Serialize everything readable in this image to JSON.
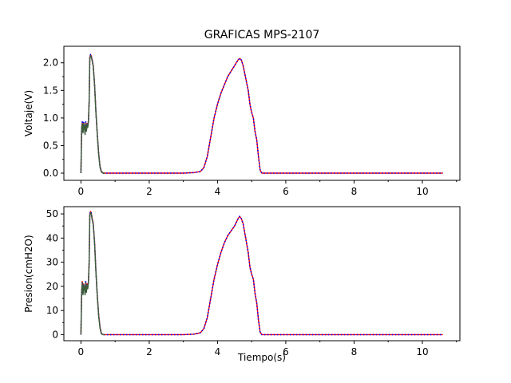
{
  "figure": {
    "title": "GRAFICAS MPS-2107",
    "background": "#ffffff"
  },
  "chart_data": [
    {
      "type": "line",
      "panel": "top",
      "title": "GRAFICAS MPS-2107",
      "xlabel": "",
      "ylabel": "Voltaje(V)",
      "xlim": [
        -0.5,
        11.1
      ],
      "ylim": [
        -0.13,
        2.3
      ],
      "xticks": [
        0,
        2,
        4,
        6,
        8,
        10
      ],
      "xtick_labels": [
        "0",
        "2",
        "4",
        "6",
        "8",
        "10"
      ],
      "yticks": [
        0.0,
        0.5,
        1.0,
        1.5,
        2.0
      ],
      "ytick_labels": [
        "0.0",
        "0.5",
        "1.0",
        "1.5",
        "2.0"
      ],
      "grid": false,
      "legend": "none",
      "series": [
        {
          "color": "#ff0000",
          "style": "solid",
          "x": [
            0.0,
            0.02,
            0.04,
            0.06,
            0.08,
            0.1,
            0.12,
            0.14,
            0.16,
            0.18,
            0.2,
            0.22,
            0.24,
            0.26,
            0.28,
            0.3,
            0.33,
            0.36,
            0.4,
            0.44,
            0.48,
            0.52,
            0.56,
            0.6,
            0.65,
            0.7,
            0.8,
            1.0,
            1.5,
            2.0,
            2.5,
            3.0,
            3.3,
            3.5,
            3.6,
            3.7,
            3.8,
            3.9,
            4.0,
            4.1,
            4.2,
            4.3,
            4.4,
            4.5,
            4.6,
            4.65,
            4.7,
            4.75,
            4.8,
            4.85,
            4.9,
            4.95,
            5.0,
            5.05,
            5.1,
            5.15,
            5.2,
            5.25,
            5.3,
            5.4,
            6.0,
            7.0,
            8.0,
            9.0,
            10.0,
            10.6
          ],
          "y": [
            0.0,
            0.82,
            0.93,
            0.75,
            0.92,
            0.85,
            0.72,
            0.93,
            0.78,
            0.9,
            0.85,
            0.95,
            1.3,
            2.1,
            2.15,
            2.13,
            2.05,
            1.95,
            1.6,
            1.1,
            0.7,
            0.35,
            0.12,
            0.03,
            0.0,
            0.0,
            0.0,
            0.0,
            0.0,
            0.0,
            0.0,
            0.0,
            0.01,
            0.03,
            0.1,
            0.3,
            0.65,
            1.0,
            1.25,
            1.45,
            1.6,
            1.75,
            1.85,
            1.95,
            2.05,
            2.08,
            2.05,
            1.95,
            1.8,
            1.65,
            1.5,
            1.25,
            1.1,
            1.0,
            0.75,
            0.6,
            0.3,
            0.05,
            0.0,
            0.0,
            0.0,
            0.0,
            0.0,
            0.0,
            0.0,
            0.0
          ]
        },
        {
          "color": "#0000ff",
          "style": "dotted",
          "x": [
            0.0,
            0.02,
            0.04,
            0.06,
            0.08,
            0.1,
            0.12,
            0.14,
            0.16,
            0.18,
            0.2,
            0.22,
            0.24,
            0.26,
            0.28,
            0.3,
            0.33,
            0.36,
            0.4,
            0.44,
            0.48,
            0.52,
            0.56,
            0.6,
            0.65,
            0.7,
            0.8,
            1.0,
            1.5,
            2.0,
            2.5,
            3.0,
            3.3,
            3.5,
            3.6,
            3.7,
            3.8,
            3.9,
            4.0,
            4.1,
            4.2,
            4.3,
            4.4,
            4.5,
            4.6,
            4.65,
            4.7,
            4.75,
            4.8,
            4.85,
            4.9,
            4.95,
            5.0,
            5.05,
            5.1,
            5.15,
            5.2,
            5.25,
            5.3,
            5.4,
            6.0,
            7.0,
            8.0,
            9.0,
            10.0,
            10.6
          ],
          "y": [
            0.0,
            0.82,
            0.93,
            0.75,
            0.92,
            0.85,
            0.72,
            0.93,
            0.78,
            0.9,
            0.85,
            0.95,
            1.3,
            2.1,
            2.15,
            2.13,
            2.05,
            1.95,
            1.6,
            1.1,
            0.7,
            0.35,
            0.12,
            0.03,
            0.0,
            0.0,
            0.0,
            0.0,
            0.0,
            0.0,
            0.0,
            0.0,
            0.01,
            0.03,
            0.1,
            0.3,
            0.65,
            1.0,
            1.25,
            1.45,
            1.6,
            1.75,
            1.85,
            1.95,
            2.05,
            2.08,
            2.05,
            1.95,
            1.8,
            1.65,
            1.5,
            1.25,
            1.1,
            1.0,
            0.75,
            0.6,
            0.3,
            0.05,
            0.0,
            0.0,
            0.0,
            0.0,
            0.0,
            0.0,
            0.0,
            0.0
          ]
        },
        {
          "color": "#3a5f3a",
          "style": "solid",
          "x": [
            0.0,
            0.02,
            0.04,
            0.06,
            0.08,
            0.1,
            0.12,
            0.14,
            0.16,
            0.18,
            0.2,
            0.22,
            0.24,
            0.26,
            0.28,
            0.3,
            0.33,
            0.36,
            0.4,
            0.44,
            0.48,
            0.52,
            0.56,
            0.6,
            0.65,
            0.7
          ],
          "y": [
            0.0,
            0.8,
            0.9,
            0.73,
            0.9,
            0.83,
            0.7,
            0.91,
            0.76,
            0.88,
            0.83,
            0.93,
            1.28,
            2.08,
            2.13,
            2.11,
            2.03,
            1.93,
            1.58,
            1.08,
            0.68,
            0.33,
            0.1,
            0.02,
            0.0,
            0.0
          ]
        }
      ]
    },
    {
      "type": "line",
      "panel": "bottom",
      "title": "",
      "xlabel": "Tiempo(s)",
      "ylabel": "Presion(cmH2O)",
      "xlim": [
        -0.5,
        11.1
      ],
      "ylim": [
        -2.5,
        53
      ],
      "xticks": [
        0,
        2,
        4,
        6,
        8,
        10
      ],
      "xtick_labels": [
        "0",
        "2",
        "4",
        "6",
        "8",
        "10"
      ],
      "yticks": [
        0,
        10,
        20,
        30,
        40,
        50
      ],
      "ytick_labels": [
        "0",
        "10",
        "20",
        "30",
        "40",
        "50"
      ],
      "grid": false,
      "legend": "none",
      "series": [
        {
          "color": "#ff0000",
          "style": "solid",
          "x": [
            0.0,
            0.02,
            0.04,
            0.06,
            0.08,
            0.1,
            0.12,
            0.14,
            0.16,
            0.18,
            0.2,
            0.22,
            0.24,
            0.26,
            0.28,
            0.3,
            0.33,
            0.36,
            0.4,
            0.44,
            0.48,
            0.52,
            0.56,
            0.6,
            0.65,
            0.7,
            0.8,
            1.0,
            1.5,
            2.0,
            2.5,
            3.0,
            3.3,
            3.5,
            3.6,
            3.7,
            3.8,
            3.9,
            4.0,
            4.1,
            4.2,
            4.3,
            4.4,
            4.5,
            4.6,
            4.65,
            4.7,
            4.75,
            4.8,
            4.85,
            4.9,
            4.95,
            5.0,
            5.05,
            5.1,
            5.15,
            5.2,
            5.25,
            5.3,
            5.4,
            6.0,
            7.0,
            8.0,
            9.0,
            10.0,
            10.6
          ],
          "y": [
            0.0,
            18,
            22,
            17,
            21,
            19.5,
            17,
            22,
            18,
            21,
            19.5,
            22,
            30,
            50,
            51,
            50.5,
            48,
            46,
            38,
            26,
            16,
            8,
            3,
            0.5,
            0.0,
            0.0,
            0.0,
            0.0,
            0.0,
            0.0,
            0.0,
            0.0,
            0.2,
            0.8,
            2.5,
            7,
            15,
            23,
            29,
            34,
            38,
            41,
            43,
            45,
            48,
            49,
            48,
            46,
            42,
            38,
            34,
            28,
            25,
            23,
            17,
            13,
            6,
            1,
            0.0,
            0.0,
            0.0,
            0.0,
            0.0,
            0.0,
            0.0,
            0.0
          ]
        },
        {
          "color": "#0000ff",
          "style": "dotted",
          "x": [
            0.0,
            0.02,
            0.04,
            0.06,
            0.08,
            0.1,
            0.12,
            0.14,
            0.16,
            0.18,
            0.2,
            0.22,
            0.24,
            0.26,
            0.28,
            0.3,
            0.33,
            0.36,
            0.4,
            0.44,
            0.48,
            0.52,
            0.56,
            0.6,
            0.65,
            0.7,
            0.8,
            1.0,
            1.5,
            2.0,
            2.5,
            3.0,
            3.3,
            3.5,
            3.6,
            3.7,
            3.8,
            3.9,
            4.0,
            4.1,
            4.2,
            4.3,
            4.4,
            4.5,
            4.6,
            4.65,
            4.7,
            4.75,
            4.8,
            4.85,
            4.9,
            4.95,
            5.0,
            5.05,
            5.1,
            5.15,
            5.2,
            5.25,
            5.3,
            5.4,
            6.0,
            7.0,
            8.0,
            9.0,
            10.0,
            10.6
          ],
          "y": [
            0.0,
            18,
            22,
            17,
            21,
            19.5,
            17,
            22,
            18,
            21,
            19.5,
            22,
            30,
            50,
            51,
            50.5,
            48,
            46,
            38,
            26,
            16,
            8,
            3,
            0.5,
            0.0,
            0.0,
            0.0,
            0.0,
            0.0,
            0.0,
            0.0,
            0.0,
            0.2,
            0.8,
            2.5,
            7,
            15,
            23,
            29,
            34,
            38,
            41,
            43,
            45,
            48,
            49,
            48,
            46,
            42,
            38,
            34,
            28,
            25,
            23,
            17,
            13,
            6,
            1,
            0.0,
            0.0,
            0.0,
            0.0,
            0.0,
            0.0,
            0.0,
            0.0
          ]
        },
        {
          "color": "#3a5f3a",
          "style": "solid",
          "x": [
            0.0,
            0.02,
            0.04,
            0.06,
            0.08,
            0.1,
            0.12,
            0.14,
            0.16,
            0.18,
            0.2,
            0.22,
            0.24,
            0.26,
            0.28,
            0.3,
            0.33,
            0.36,
            0.4,
            0.44,
            0.48,
            0.52,
            0.56,
            0.6,
            0.65,
            0.7
          ],
          "y": [
            0.0,
            17.5,
            21.5,
            16.5,
            20.5,
            19,
            16.5,
            21.5,
            17.5,
            20.5,
            19,
            21.5,
            29.5,
            49.5,
            50.5,
            50,
            47.5,
            45.5,
            37.5,
            25.5,
            15.5,
            7.5,
            2.5,
            0.3,
            0.0,
            0.0
          ]
        }
      ]
    }
  ]
}
